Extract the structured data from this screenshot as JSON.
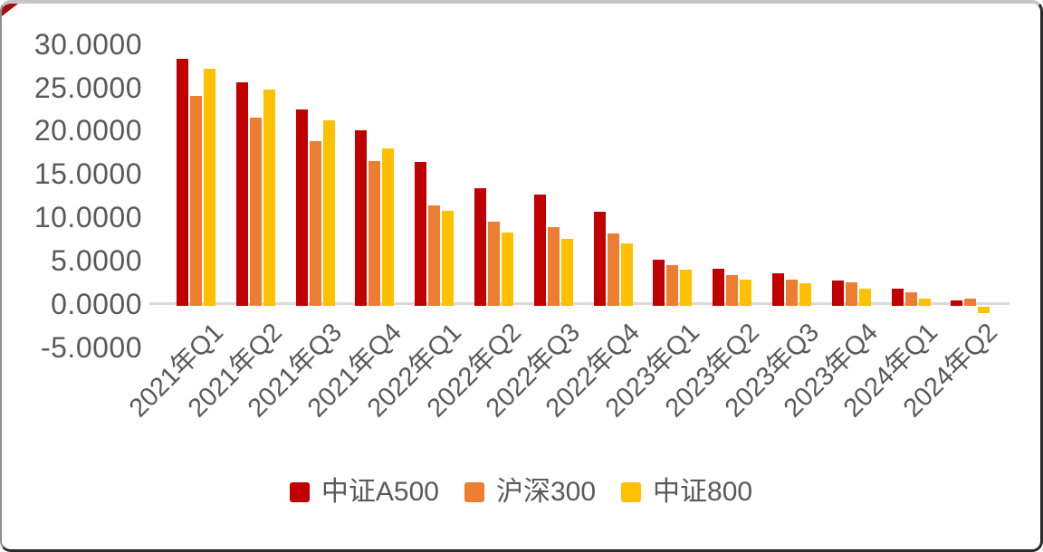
{
  "frame": {
    "corner_mark_color": "#a50f0f",
    "background_color": "#ffffff"
  },
  "chart_data": {
    "type": "bar",
    "title": "",
    "xlabel": "",
    "ylabel": "",
    "categories": [
      "2021年Q1",
      "2021年Q2",
      "2021年Q3",
      "2021年Q4",
      "2022年Q1",
      "2022年Q2",
      "2022年Q3",
      "2022年Q4",
      "2023年Q1",
      "2023年Q2",
      "2023年Q3",
      "2023年Q4",
      "2024年Q1",
      "2024年Q2"
    ],
    "series": [
      {
        "name": "中证A500",
        "color": "#C00000",
        "values": [
          28.3,
          25.6,
          22.4,
          20.0,
          16.4,
          13.4,
          12.6,
          10.6,
          5.1,
          4.1,
          3.6,
          2.7,
          1.8,
          0.4
        ]
      },
      {
        "name": "沪深300",
        "color": "#ED7D31",
        "values": [
          24.0,
          21.5,
          18.8,
          16.5,
          11.4,
          9.5,
          8.9,
          8.1,
          4.5,
          3.3,
          2.8,
          2.5,
          1.4,
          0.6
        ]
      },
      {
        "name": "中证800",
        "color": "#FFC000",
        "values": [
          27.2,
          24.7,
          21.2,
          18.0,
          10.8,
          8.3,
          7.5,
          7.0,
          4.0,
          2.8,
          2.4,
          1.8,
          0.6,
          -0.9
        ]
      }
    ],
    "y_ticks": [
      "30.0000",
      "25.0000",
      "20.0000",
      "15.0000",
      "10.0000",
      "5.0000",
      "0.0000",
      "-5.0000"
    ],
    "ylim": [
      -5,
      30
    ],
    "grid": false,
    "legend_position": "bottom",
    "x_label_rotation_deg": 45,
    "axis_line_color": "#d9d9d9",
    "text_color": "#595959"
  }
}
